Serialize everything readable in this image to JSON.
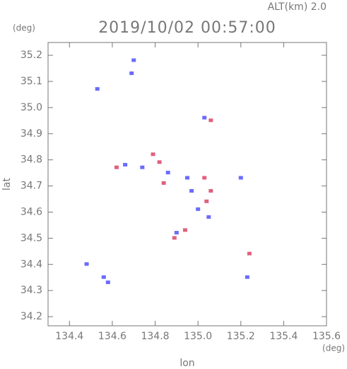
{
  "chart_data": {
    "type": "scatter",
    "title": "2019/10/02 00:57:00",
    "subtitle": "ALT(km) 2.0",
    "y_unit": "(deg)",
    "x_unit": "(deg)",
    "xlabel": "lon",
    "ylabel": "lat",
    "xlim": [
      134.3,
      135.6
    ],
    "ylim": [
      34.165,
      35.249
    ],
    "xticks": [
      134.4,
      134.6,
      134.8,
      {
        "value": 135.0,
        "label": "135.0"
      },
      135.2,
      135.4,
      135.6
    ],
    "yticks": [
      34.2,
      34.3,
      34.4,
      34.5,
      34.6,
      34.7,
      34.8,
      34.9,
      {
        "value": 35.0,
        "label": "35.0"
      },
      35.1,
      35.2
    ],
    "series": [
      {
        "color": "#6b6bff",
        "x": [
          134.53,
          134.7,
          134.69,
          135.03,
          134.66,
          134.74,
          134.86,
          134.95,
          134.97,
          135.0,
          134.9,
          135.2,
          135.23,
          134.48,
          134.56,
          134.58,
          135.05
        ],
        "y": [
          35.07,
          35.18,
          35.13,
          34.96,
          34.78,
          34.77,
          34.75,
          34.73,
          34.68,
          34.61,
          34.52,
          34.73,
          34.35,
          34.4,
          34.35,
          34.33,
          34.58
        ]
      },
      {
        "color": "#e0607e",
        "x": [
          135.06,
          134.62,
          134.79,
          134.82,
          134.84,
          135.03,
          135.06,
          135.04,
          134.94,
          134.89,
          135.24
        ],
        "y": [
          34.95,
          34.77,
          34.82,
          34.79,
          34.71,
          34.73,
          34.68,
          34.64,
          34.53,
          34.5,
          34.44
        ]
      }
    ]
  }
}
